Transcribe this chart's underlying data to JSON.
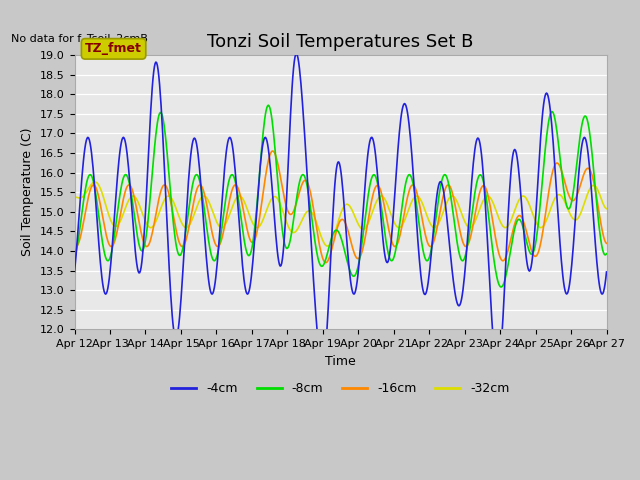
{
  "title": "Tonzi Soil Temperatures Set B",
  "xlabel": "Time",
  "ylabel": "Soil Temperature (C)",
  "no_data_text": "No data for f_Tsoil_2cmB",
  "annotation_text": "TZ_fmet",
  "ylim": [
    12.0,
    19.0
  ],
  "yticks": [
    12.0,
    12.5,
    13.0,
    13.5,
    14.0,
    14.5,
    15.0,
    15.5,
    16.0,
    16.5,
    17.0,
    17.5,
    18.0,
    18.5,
    19.0
  ],
  "xtick_labels": [
    "Apr 12",
    "Apr 13",
    "Apr 14",
    "Apr 15",
    "Apr 16",
    "Apr 17",
    "Apr 18",
    "Apr 19",
    "Apr 20",
    "Apr 21",
    "Apr 22",
    "Apr 23",
    "Apr 24",
    "Apr 25",
    "Apr 26",
    "Apr 27"
  ],
  "colors": {
    "4cm": "#2222dd",
    "8cm": "#00dd00",
    "16cm": "#ff8800",
    "32cm": "#dddd00"
  },
  "legend_labels": [
    "-4cm",
    "-8cm",
    "-16cm",
    "-32cm"
  ],
  "bg_color": "#e8e8e8",
  "fig_bg_color": "#c8c8c8",
  "title_fontsize": 13,
  "axis_fontsize": 9,
  "tick_fontsize": 8,
  "annotation_bg": "#cccc00",
  "annotation_fg": "#880000",
  "linewidth": 1.2
}
